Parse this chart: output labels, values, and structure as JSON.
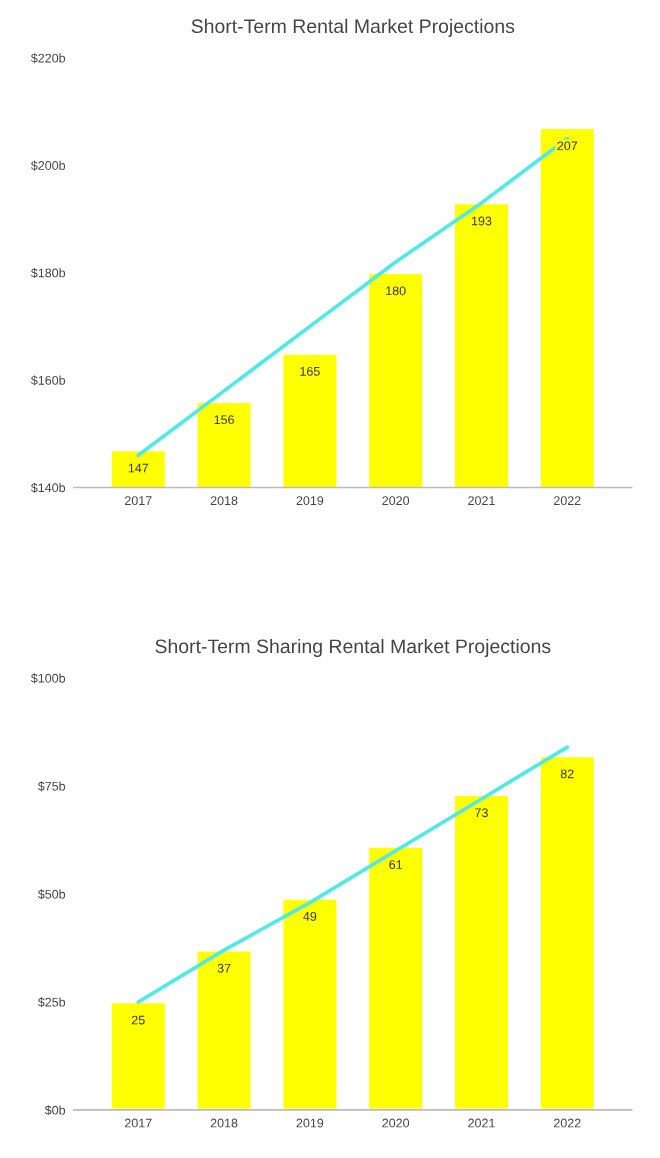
{
  "chart_data": [
    {
      "type": "bar",
      "title": "Short-Term Rental Market Projections",
      "categories": [
        "2017",
        "2018",
        "2019",
        "2020",
        "2021",
        "2022"
      ],
      "series": [
        {
          "color": "#ffff00",
          "values": [
            147,
            156,
            165,
            180,
            193,
            207
          ],
          "value_labels": [
            "147",
            "156",
            "165",
            "180",
            "193",
            "207"
          ]
        },
        {
          "type": "line",
          "color": "#4deaea",
          "values": [
            146,
            158,
            170,
            182,
            193,
            205
          ]
        }
      ],
      "ylim": [
        140,
        220
      ],
      "yticks": [
        {
          "value": 140,
          "label": "$140b"
        },
        {
          "value": 160,
          "label": "$160b"
        },
        {
          "value": 180,
          "label": "$180b"
        },
        {
          "value": 200,
          "label": "$200b"
        },
        {
          "value": 220,
          "label": "$220b"
        }
      ],
      "grid": false
    },
    {
      "type": "bar",
      "title": "Short-Term Sharing Rental Market Projections",
      "categories": [
        "2017",
        "2018",
        "2019",
        "2020",
        "2021",
        "2022"
      ],
      "series": [
        {
          "color": "#ffff00",
          "values": [
            25,
            37,
            49,
            61,
            73,
            82
          ],
          "value_labels": [
            "25",
            "37",
            "49",
            "61",
            "73",
            "82"
          ]
        },
        {
          "type": "line",
          "color": "#4deaea",
          "values": [
            25,
            37,
            48,
            60,
            72,
            84
          ]
        }
      ],
      "ylim": [
        0,
        100
      ],
      "yticks": [
        {
          "value": 0,
          "label": "$0b"
        },
        {
          "value": 25,
          "label": "$25b"
        },
        {
          "value": 50,
          "label": "$50b"
        },
        {
          "value": 75,
          "label": "$75b"
        },
        {
          "value": 100,
          "label": "$100b"
        }
      ],
      "grid": false
    }
  ]
}
